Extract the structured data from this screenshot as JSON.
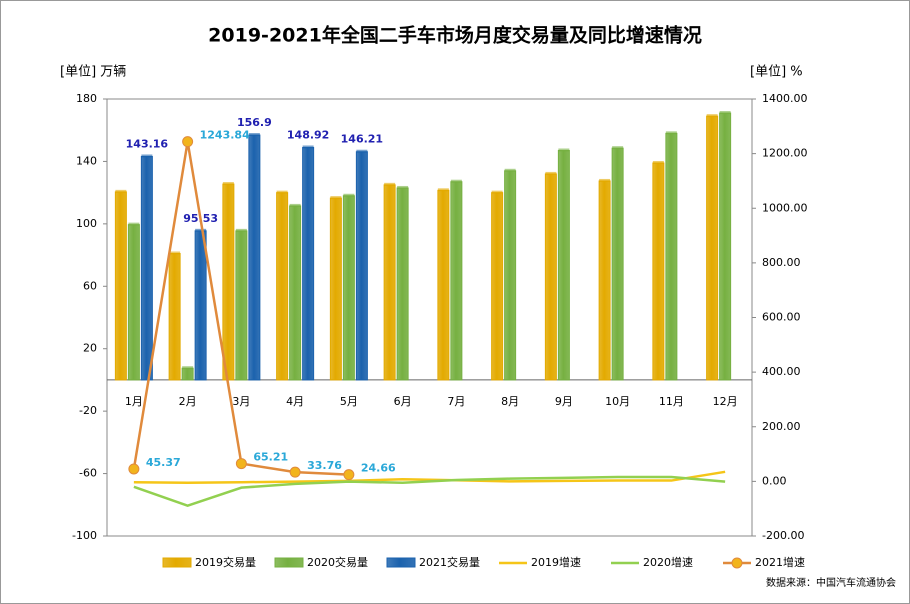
{
  "chart_data": {
    "type": "bar-line",
    "title": "2019-2021年全国二手车市场月度交易量及同比增速情况",
    "y_label": "[单位] 万辆",
    "y2_label": "[单位] %",
    "source": "数据来源：中国汽车流通协会",
    "categories": [
      "1月",
      "2月",
      "3月",
      "4月",
      "5月",
      "6月",
      "7月",
      "8月",
      "9月",
      "10月",
      "11月",
      "12月"
    ],
    "ylim": [
      -100,
      180
    ],
    "yticks": [
      -100,
      -60,
      -20,
      20,
      60,
      100,
      140,
      180
    ],
    "y2lim": [
      -200,
      1400
    ],
    "y2ticks": [
      {
        "value": -200,
        "label": "-200.00"
      },
      {
        "value": 0,
        "label": "0.00"
      },
      {
        "value": 200,
        "label": "200.00"
      },
      {
        "value": 400,
        "label": "400.00"
      },
      {
        "value": 600,
        "label": "600.00"
      },
      {
        "value": 800,
        "label": "800.00"
      },
      {
        "value": 1000,
        "label": "1000.00"
      },
      {
        "value": 1200,
        "label": "1200.00"
      },
      {
        "value": 1400,
        "label": "1400.00"
      }
    ],
    "grid": false,
    "series": [
      {
        "name": "2019交易量",
        "kind": "bar",
        "color": "#e3aa00",
        "values": [
          120.5,
          81,
          125.5,
          120,
          116.5,
          125,
          121.5,
          120,
          132,
          127.5,
          139,
          169
        ]
      },
      {
        "name": "2020交易量",
        "kind": "bar",
        "color": "#76b041",
        "values": [
          99.5,
          7.5,
          95.5,
          111.5,
          118,
          123,
          127,
          134,
          147,
          148.5,
          158,
          171
        ]
      },
      {
        "name": "2021交易量",
        "kind": "bar",
        "color": "#1b62ad",
        "values": [
          143.16,
          95.53,
          156.9,
          148.92,
          146.21,
          null,
          null,
          null,
          null,
          null,
          null,
          null
        ],
        "labeled": true
      },
      {
        "name": "2019增速",
        "kind": "line",
        "axis": "y2",
        "color": "#f5c518",
        "values": [
          -3,
          -5,
          -3,
          -1,
          2,
          8,
          4,
          0,
          2,
          3,
          3,
          35
        ]
      },
      {
        "name": "2020增速",
        "kind": "line",
        "axis": "y2",
        "color": "#92d050",
        "values": [
          -20,
          -89,
          -23,
          -9,
          -1,
          -5,
          5,
          10,
          13,
          16,
          16,
          -1
        ]
      },
      {
        "name": "2021增速",
        "kind": "line",
        "axis": "y2",
        "color": "#e08a3c",
        "marker": "#f2b41c",
        "values": [
          45.37,
          1243.84,
          65.21,
          33.76,
          24.66,
          null,
          null,
          null,
          null,
          null,
          null,
          null
        ],
        "labeled": true
      }
    ]
  }
}
